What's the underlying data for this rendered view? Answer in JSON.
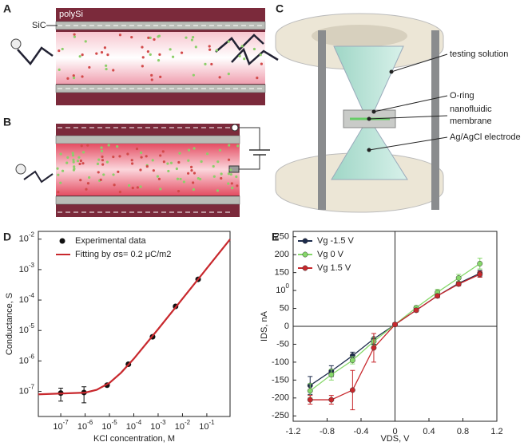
{
  "panels": [
    {
      "label": "A",
      "texts": [
        "polySi",
        "SiC"
      ]
    },
    {
      "label": "B"
    },
    {
      "label": "C",
      "texts": [
        "testing solution",
        "O-ring",
        "nanofluidic",
        "membrane",
        "Ag/AgCl electrode"
      ]
    },
    {
      "label": "D"
    },
    {
      "label": "E"
    }
  ],
  "chart_data": [
    {
      "type": "scatter",
      "xlabel": "KCl concentration, M",
      "ylabel": "Conductance, S",
      "xscale": "log",
      "yscale": "log",
      "legend": "upper left",
      "xlim": [
        1.2e-08,
        0.9
      ],
      "ylim": [
        1.5e-08,
        0.018
      ],
      "xticks": [
        {
          "value": 1e-07,
          "label": "10-7"
        },
        {
          "value": 1e-06,
          "label": "10-6"
        },
        {
          "value": 1e-05,
          "label": "10-5"
        },
        {
          "value": 0.0001,
          "label": "10-4"
        },
        {
          "value": 0.001,
          "label": "10-3"
        },
        {
          "value": 0.01,
          "label": "10-2"
        },
        {
          "value": 0.1,
          "label": "10-1"
        }
      ],
      "yticks": [
        {
          "value": 1e-07,
          "label": "10-7"
        },
        {
          "value": 1e-06,
          "label": "10-6"
        },
        {
          "value": 1e-05,
          "label": "10-5"
        },
        {
          "value": 0.0001,
          "label": "10-4"
        },
        {
          "value": 0.001,
          "label": "10-3"
        },
        {
          "value": 0.01,
          "label": "10-2"
        }
      ],
      "series": [
        {
          "name": "Experimental data",
          "color": "#111111",
          "kind": "points",
          "x": [
            1e-07,
            9e-07,
            8e-06,
            6e-05,
            0.00059,
            0.0052,
            0.044
          ],
          "values": [
            8.8e-08,
            9.2e-08,
            1.6e-07,
            7.8e-07,
            6.2e-06,
            6.2e-05,
            0.00048
          ],
          "errors": [
            4e-08,
            5e-08,
            null,
            null,
            null,
            null,
            null
          ]
        },
        {
          "name": "Fitting by σs= 0.2 μC/m2",
          "color": "#c8282d",
          "kind": "line",
          "x": [
            1.2e-08,
            1e-06,
            3e-06,
            1e-05,
            3e-05,
            0.0001,
            0.001,
            0.01,
            0.1,
            0.9
          ],
          "values": [
            8e-08,
            9.1e-08,
            1.13e-07,
            1.9e-07,
            4.1e-07,
            1.18e-06,
            1.11e-05,
            0.00011,
            0.0011,
            0.0099
          ]
        }
      ]
    },
    {
      "type": "line",
      "xlabel": "VDS, V",
      "ylabel": "IDS, nA",
      "legend": "upper left",
      "origin_axes": true,
      "xlim": [
        -1.2,
        1.2
      ],
      "ylim": [
        -265,
        265
      ],
      "xticks": [
        -1.2,
        -0.8,
        -0.4,
        0,
        0.4,
        0.8,
        1.2
      ],
      "yticks": [
        -250,
        -200,
        -150,
        -100,
        -50,
        0,
        50,
        100,
        150,
        200,
        250
      ],
      "x": [
        -1,
        -0.75,
        -0.5,
        -0.25,
        0,
        0.25,
        0.5,
        0.75,
        1
      ],
      "series": [
        {
          "name": "Vg -1.5 V",
          "color": "#1d2b4c",
          "values": [
            -165,
            -125,
            -82,
            -35,
            5,
            45,
            85,
            120,
            148
          ],
          "errors": [
            25,
            15,
            10,
            15,
            5,
            5,
            5,
            5,
            8
          ]
        },
        {
          "name": "Vg 0 V",
          "color": "#86d86a",
          "values": [
            -180,
            -135,
            -95,
            -42,
            5,
            52,
            95,
            135,
            175
          ],
          "errors": [
            20,
            15,
            10,
            10,
            5,
            5,
            8,
            10,
            15
          ]
        },
        {
          "name": "Vg 1.5 V",
          "color": "#c8282d",
          "values": [
            -205,
            -205,
            -178,
            -60,
            5,
            45,
            85,
            118,
            145
          ],
          "errors": [
            12,
            12,
            55,
            40,
            5,
            5,
            5,
            5,
            8
          ]
        }
      ]
    }
  ]
}
